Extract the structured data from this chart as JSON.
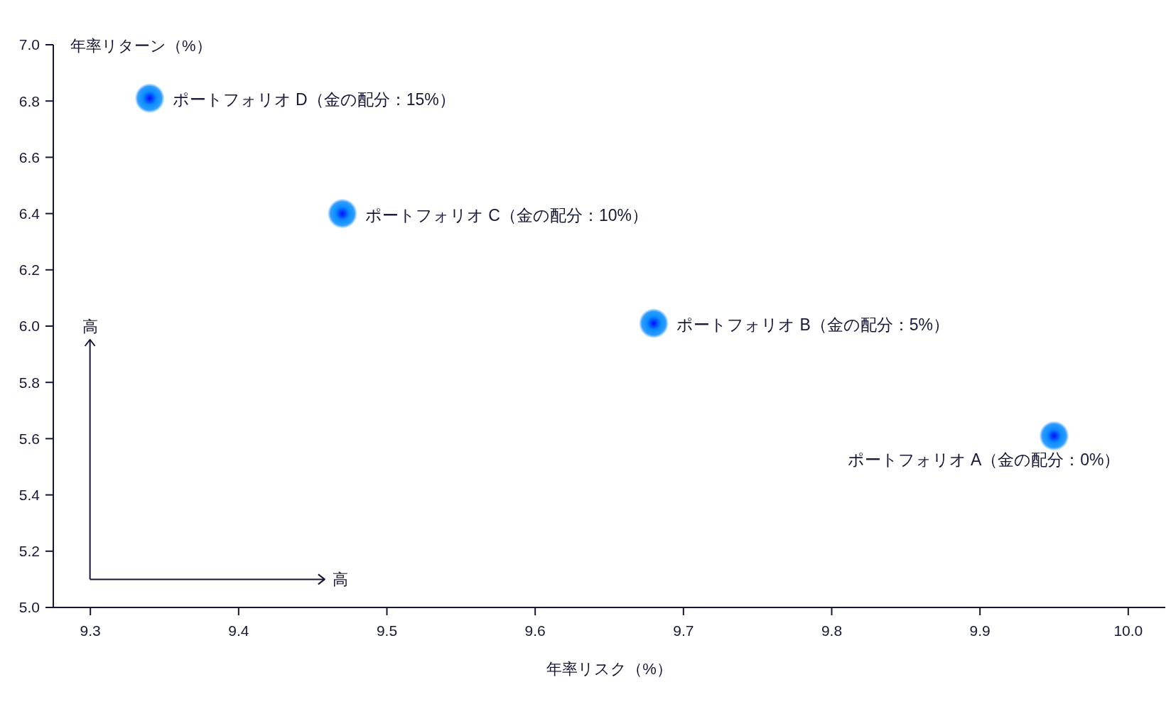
{
  "chart_data": {
    "type": "scatter",
    "xlabel": "年率リスク（%）",
    "ylabel": "年率リターン（%）",
    "series": [
      {
        "name": "ポートフォリオ D（金の配分：15%）",
        "color": "#0a8cff",
        "x": [
          9.34
        ],
        "values": [
          6.81
        ]
      },
      {
        "name": "ポートフォリオ C（金の配分：10%）",
        "color": "#0a8cff",
        "x": [
          9.47
        ],
        "values": [
          6.4
        ]
      },
      {
        "name": "ポートフォリオ B（金の配分：5%）",
        "color": "#0a8cff",
        "x": [
          9.68
        ],
        "values": [
          6.01
        ]
      },
      {
        "name": "ポートフォリオ A（金の配分：0%）",
        "color": "#0a8cff",
        "x": [
          9.95
        ],
        "values": [
          5.61
        ]
      }
    ],
    "xlim": [
      9.275,
      10.025
    ],
    "xticks": [
      9.3,
      9.4,
      9.5,
      9.6,
      9.7,
      9.8,
      9.9,
      {
        "value": 10,
        "label": "10.0"
      }
    ],
    "ylim": [
      5,
      7
    ],
    "yticks": [
      {
        "value": 5,
        "label": "5.0"
      },
      5.2,
      5.4,
      5.6,
      5.8,
      {
        "value": 6,
        "label": "6.0"
      },
      6.2,
      6.4,
      6.6,
      6.8,
      {
        "value": 7,
        "label": "7.0"
      }
    ],
    "marker": "circle",
    "annotations": [
      "高",
      "高"
    ]
  }
}
